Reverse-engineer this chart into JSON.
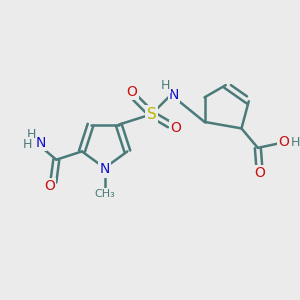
{
  "bg_color": "#ebebeb",
  "bond_color": "#4a7a7a",
  "bond_width": 1.8,
  "atom_colors": {
    "N": "#1010cc",
    "O": "#cc1010",
    "S": "#b8b800",
    "C": "#4a7a7a",
    "H": "#4a7a7a"
  },
  "font_size": 9,
  "figsize": [
    3.0,
    3.0
  ],
  "dpi": 100
}
